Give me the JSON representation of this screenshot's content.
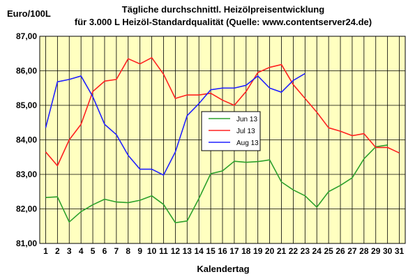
{
  "chart_data": {
    "type": "line",
    "title_lines": [
      "Tägliche durchschnittl. Heizölpreisentwicklung",
      "für 3.000 L Heizöl-Standardqualität (Quelle: www.contentserver24.de)"
    ],
    "ylabel": "Euro/100L",
    "xlabel": "Kalendertag",
    "ylim": [
      81,
      87
    ],
    "yticks": [
      "81,00",
      "82,00",
      "83,00",
      "84,00",
      "85,00",
      "86,00",
      "87,00"
    ],
    "x": [
      1,
      2,
      3,
      4,
      5,
      6,
      7,
      8,
      9,
      10,
      11,
      12,
      13,
      14,
      15,
      16,
      17,
      18,
      19,
      20,
      21,
      22,
      23,
      24,
      25,
      26,
      27,
      28,
      29,
      30,
      31
    ],
    "grid": true,
    "plot_background": "#ffffc0",
    "legend_position": "center",
    "series": [
      {
        "name": "Jun 13",
        "color": "#2ca02c",
        "values": [
          82.33,
          82.35,
          81.62,
          81.92,
          82.12,
          82.28,
          82.2,
          82.18,
          82.25,
          82.38,
          82.13,
          81.6,
          81.65,
          82.3,
          83.02,
          83.1,
          83.38,
          83.35,
          83.37,
          83.42,
          82.78,
          82.55,
          82.38,
          82.05,
          82.5,
          82.68,
          82.9,
          83.45,
          83.8,
          83.85,
          null
        ]
      },
      {
        "name": "Jul 13",
        "color": "#ff2020",
        "values": [
          83.65,
          83.25,
          84.0,
          84.45,
          85.4,
          85.7,
          85.75,
          86.35,
          86.2,
          86.38,
          85.9,
          85.2,
          85.3,
          85.3,
          85.35,
          85.15,
          85.0,
          85.4,
          85.95,
          86.1,
          86.18,
          85.6,
          85.2,
          84.8,
          84.35,
          84.25,
          84.12,
          84.18,
          83.78,
          83.78,
          83.62
        ]
      },
      {
        "name": "Aug 13",
        "color": "#2020ff",
        "values": [
          84.35,
          85.68,
          85.75,
          85.85,
          85.25,
          84.45,
          84.15,
          83.55,
          83.15,
          83.15,
          82.98,
          83.65,
          84.7,
          85.05,
          85.45,
          85.5,
          85.5,
          85.58,
          85.85,
          85.5,
          85.38,
          85.72,
          85.92,
          null,
          null,
          null,
          null,
          null,
          null,
          null,
          null
        ]
      }
    ]
  }
}
